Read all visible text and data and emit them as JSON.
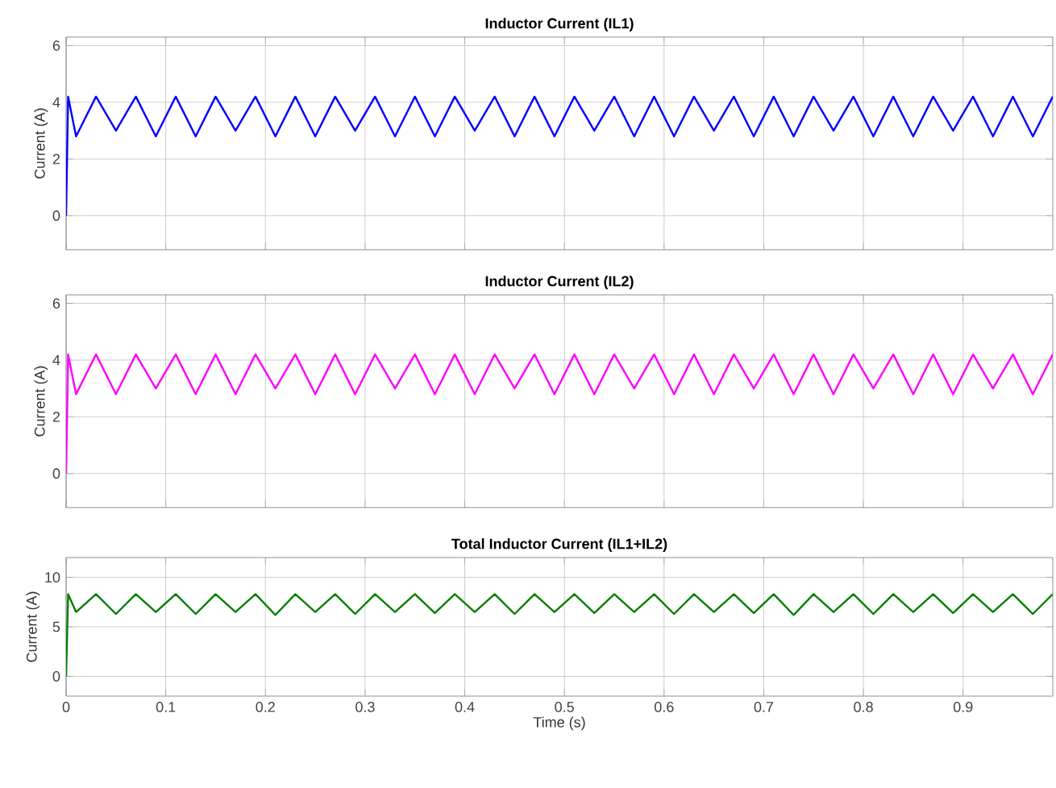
{
  "chart_data": [
    {
      "type": "line",
      "title": "Inductor Current (IL1)",
      "ylabel": "Current (A)",
      "xlim": [
        0,
        0.99
      ],
      "ylim": [
        -1.2,
        6.3
      ],
      "xticks": [
        0,
        0.1,
        0.2,
        0.3,
        0.4,
        0.5,
        0.6,
        0.7,
        0.8,
        0.9
      ],
      "yticks": [
        0,
        2,
        4,
        6
      ],
      "grid": true,
      "tick_labels": "y",
      "x": [
        0,
        0.002,
        0.01,
        0.03,
        0.05,
        0.07,
        0.09,
        0.11,
        0.13,
        0.15,
        0.17,
        0.19,
        0.21,
        0.23,
        0.25,
        0.27,
        0.29,
        0.31,
        0.33,
        0.35,
        0.37,
        0.39,
        0.41,
        0.43,
        0.45,
        0.47,
        0.49,
        0.51,
        0.53,
        0.55,
        0.57,
        0.59,
        0.61,
        0.63,
        0.65,
        0.67,
        0.69,
        0.71,
        0.73,
        0.75,
        0.77,
        0.79,
        0.81,
        0.83,
        0.85,
        0.87,
        0.89,
        0.91,
        0.93,
        0.95,
        0.97,
        0.99
      ],
      "series": [
        {
          "color": "#0000ff",
          "values": [
            0,
            4.2,
            2.8,
            4.2,
            3.0,
            4.2,
            2.8,
            4.2,
            2.8,
            4.2,
            3.0,
            4.2,
            2.8,
            4.2,
            2.8,
            4.2,
            3.0,
            4.2,
            2.8,
            4.2,
            2.8,
            4.2,
            3.0,
            4.2,
            2.8,
            4.2,
            2.8,
            4.2,
            3.0,
            4.2,
            2.8,
            4.2,
            2.8,
            4.2,
            3.0,
            4.2,
            2.8,
            4.2,
            2.8,
            4.2,
            3.0,
            4.2,
            2.8,
            4.2,
            2.8,
            4.2,
            3.0,
            4.2,
            2.8,
            4.2,
            2.8,
            4.2
          ]
        }
      ]
    },
    {
      "type": "line",
      "title": "Inductor Current (IL2)",
      "ylabel": "Current (A)",
      "xlim": [
        0,
        0.99
      ],
      "ylim": [
        -1.2,
        6.3
      ],
      "xticks": [
        0,
        0.1,
        0.2,
        0.3,
        0.4,
        0.5,
        0.6,
        0.7,
        0.8,
        0.9
      ],
      "yticks": [
        0,
        2,
        4,
        6
      ],
      "grid": true,
      "tick_labels": "y",
      "x": [
        0,
        0.002,
        0.01,
        0.03,
        0.05,
        0.07,
        0.09,
        0.11,
        0.13,
        0.15,
        0.17,
        0.19,
        0.21,
        0.23,
        0.25,
        0.27,
        0.29,
        0.31,
        0.33,
        0.35,
        0.37,
        0.39,
        0.41,
        0.43,
        0.45,
        0.47,
        0.49,
        0.51,
        0.53,
        0.55,
        0.57,
        0.59,
        0.61,
        0.63,
        0.65,
        0.67,
        0.69,
        0.71,
        0.73,
        0.75,
        0.77,
        0.79,
        0.81,
        0.83,
        0.85,
        0.87,
        0.89,
        0.91,
        0.93,
        0.95,
        0.97,
        0.99
      ],
      "series": [
        {
          "color": "#ff00ff",
          "values": [
            0,
            4.2,
            2.8,
            4.2,
            2.8,
            4.2,
            3.0,
            4.2,
            2.8,
            4.2,
            2.8,
            4.2,
            3.0,
            4.2,
            2.8,
            4.2,
            2.8,
            4.2,
            3.0,
            4.2,
            2.8,
            4.2,
            2.8,
            4.2,
            3.0,
            4.2,
            2.8,
            4.2,
            2.8,
            4.2,
            3.0,
            4.2,
            2.8,
            4.2,
            2.8,
            4.2,
            3.0,
            4.2,
            2.8,
            4.2,
            2.8,
            4.2,
            3.0,
            4.2,
            2.8,
            4.2,
            2.8,
            4.2,
            3.0,
            4.2,
            2.8,
            4.2
          ]
        }
      ]
    },
    {
      "type": "line",
      "title": "Total Inductor Current (IL1+IL2)",
      "xlabel": "Time (s)",
      "ylabel": "Current (A)",
      "xlim": [
        0,
        0.99
      ],
      "ylim": [
        -2,
        12
      ],
      "xticks": [
        0,
        0.1,
        0.2,
        0.3,
        0.4,
        0.5,
        0.6,
        0.7,
        0.8,
        0.9
      ],
      "yticks": [
        0,
        5,
        10
      ],
      "grid": true,
      "x": [
        0,
        0.002,
        0.01,
        0.03,
        0.05,
        0.07,
        0.09,
        0.11,
        0.13,
        0.15,
        0.17,
        0.19,
        0.21,
        0.23,
        0.25,
        0.27,
        0.29,
        0.31,
        0.33,
        0.35,
        0.37,
        0.39,
        0.41,
        0.43,
        0.45,
        0.47,
        0.49,
        0.51,
        0.53,
        0.55,
        0.57,
        0.59,
        0.61,
        0.63,
        0.65,
        0.67,
        0.69,
        0.71,
        0.73,
        0.75,
        0.77,
        0.79,
        0.81,
        0.83,
        0.85,
        0.87,
        0.89,
        0.91,
        0.93,
        0.95,
        0.97,
        0.99
      ],
      "series": [
        {
          "color": "#007f00",
          "values": [
            0,
            8.3,
            6.5,
            8.3,
            6.3,
            8.3,
            6.5,
            8.3,
            6.3,
            8.3,
            6.5,
            8.3,
            6.2,
            8.3,
            6.5,
            8.3,
            6.3,
            8.3,
            6.5,
            8.3,
            6.4,
            8.3,
            6.5,
            8.3,
            6.3,
            8.3,
            6.5,
            8.3,
            6.4,
            8.3,
            6.5,
            8.3,
            6.3,
            8.3,
            6.5,
            8.3,
            6.4,
            8.3,
            6.2,
            8.3,
            6.5,
            8.3,
            6.3,
            8.3,
            6.5,
            8.3,
            6.4,
            8.3,
            6.5,
            8.3,
            6.3,
            8.3
          ]
        }
      ]
    }
  ]
}
